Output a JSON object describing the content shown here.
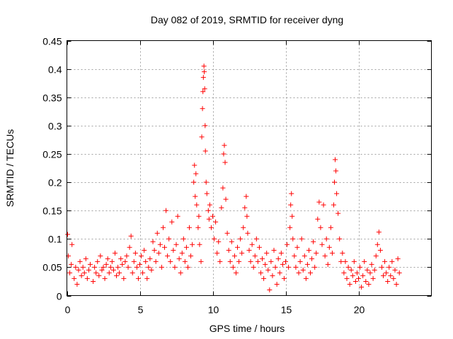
{
  "chart_data": {
    "type": "scatter",
    "title": "Day 082 of 2019, SRMTID for receiver dyng",
    "xlabel": "GPS time / hours",
    "ylabel": "SRMTID / TECUs",
    "xlim": [
      0,
      25
    ],
    "ylim": [
      0,
      0.45
    ],
    "x_ticks": [
      0,
      5,
      10,
      15,
      20
    ],
    "x_tick_labels": [
      "0",
      "5",
      "10",
      "15",
      "20"
    ],
    "y_ticks": [
      0,
      0.05,
      0.1,
      0.15,
      0.2,
      0.25,
      0.3,
      0.35,
      0.4,
      0.45
    ],
    "y_tick_labels": [
      "0",
      "0.05",
      "0.1",
      "0.15",
      "0.2",
      "0.25",
      "0.3",
      "0.35",
      "0.4",
      "0.45"
    ],
    "grid": true,
    "marker": "+",
    "color": "#ff0000",
    "series": [
      {
        "name": "SRMTID",
        "points": [
          [
            0.05,
            0.108
          ],
          [
            0.1,
            0.07
          ],
          [
            0.2,
            0.04
          ],
          [
            0.3,
            0.055
          ],
          [
            0.35,
            0.09
          ],
          [
            0.5,
            0.03
          ],
          [
            0.6,
            0.05
          ],
          [
            0.7,
            0.02
          ],
          [
            0.8,
            0.045
          ],
          [
            0.9,
            0.06
          ],
          [
            1.0,
            0.035
          ],
          [
            1.1,
            0.05
          ],
          [
            1.2,
            0.04
          ],
          [
            1.3,
            0.065
          ],
          [
            1.4,
            0.03
          ],
          [
            1.5,
            0.045
          ],
          [
            1.6,
            0.055
          ],
          [
            1.8,
            0.025
          ],
          [
            1.9,
            0.05
          ],
          [
            2.0,
            0.04
          ],
          [
            2.1,
            0.06
          ],
          [
            2.2,
            0.035
          ],
          [
            2.3,
            0.07
          ],
          [
            2.4,
            0.045
          ],
          [
            2.5,
            0.05
          ],
          [
            2.6,
            0.03
          ],
          [
            2.7,
            0.055
          ],
          [
            2.8,
            0.065
          ],
          [
            2.9,
            0.04
          ],
          [
            3.0,
            0.05
          ],
          [
            3.1,
            0.06
          ],
          [
            3.2,
            0.045
          ],
          [
            3.3,
            0.075
          ],
          [
            3.4,
            0.035
          ],
          [
            3.5,
            0.05
          ],
          [
            3.6,
            0.04
          ],
          [
            3.7,
            0.065
          ],
          [
            3.8,
            0.055
          ],
          [
            3.9,
            0.03
          ],
          [
            4.0,
            0.06
          ],
          [
            4.1,
            0.07
          ],
          [
            4.2,
            0.05
          ],
          [
            4.3,
            0.085
          ],
          [
            4.4,
            0.105
          ],
          [
            4.5,
            0.04
          ],
          [
            4.6,
            0.06
          ],
          [
            4.7,
            0.075
          ],
          [
            4.8,
            0.05
          ],
          [
            4.9,
            0.03
          ],
          [
            5.0,
            0.055
          ],
          [
            5.1,
            0.07
          ],
          [
            5.2,
            0.04
          ],
          [
            5.3,
            0.08
          ],
          [
            5.4,
            0.06
          ],
          [
            5.5,
            0.03
          ],
          [
            5.6,
            0.05
          ],
          [
            5.7,
            0.065
          ],
          [
            5.8,
            0.045
          ],
          [
            5.9,
            0.095
          ],
          [
            6.0,
            0.08
          ],
          [
            6.1,
            0.06
          ],
          [
            6.2,
            0.11
          ],
          [
            6.3,
            0.075
          ],
          [
            6.4,
            0.09
          ],
          [
            6.5,
            0.05
          ],
          [
            6.6,
            0.12
          ],
          [
            6.7,
            0.085
          ],
          [
            6.8,
            0.15
          ],
          [
            6.9,
            0.07
          ],
          [
            7.0,
            0.1
          ],
          [
            7.1,
            0.06
          ],
          [
            7.2,
            0.13
          ],
          [
            7.3,
            0.08
          ],
          [
            7.4,
            0.05
          ],
          [
            7.5,
            0.09
          ],
          [
            7.6,
            0.14
          ],
          [
            7.7,
            0.065
          ],
          [
            7.8,
            0.04
          ],
          [
            7.9,
            0.075
          ],
          [
            8.0,
            0.1
          ],
          [
            8.1,
            0.06
          ],
          [
            8.2,
            0.085
          ],
          [
            8.3,
            0.05
          ],
          [
            8.4,
            0.12
          ],
          [
            8.5,
            0.07
          ],
          [
            8.6,
            0.09
          ],
          [
            8.7,
            0.2
          ],
          [
            8.75,
            0.23
          ],
          [
            8.8,
            0.175
          ],
          [
            8.85,
            0.215
          ],
          [
            8.9,
            0.16
          ],
          [
            9.0,
            0.12
          ],
          [
            9.05,
            0.14
          ],
          [
            9.1,
            0.09
          ],
          [
            9.2,
            0.06
          ],
          [
            9.25,
            0.28
          ],
          [
            9.3,
            0.33
          ],
          [
            9.33,
            0.36
          ],
          [
            9.36,
            0.385
          ],
          [
            9.4,
            0.405
          ],
          [
            9.42,
            0.395
          ],
          [
            9.45,
            0.365
          ],
          [
            9.48,
            0.3
          ],
          [
            9.5,
            0.255
          ],
          [
            9.55,
            0.2
          ],
          [
            9.6,
            0.18
          ],
          [
            9.7,
            0.15
          ],
          [
            9.75,
            0.135
          ],
          [
            9.8,
            0.16
          ],
          [
            9.9,
            0.12
          ],
          [
            10.0,
            0.14
          ],
          [
            10.1,
            0.1
          ],
          [
            10.2,
            0.13
          ],
          [
            10.3,
            0.075
          ],
          [
            10.4,
            0.095
          ],
          [
            10.5,
            0.06
          ],
          [
            10.6,
            0.155
          ],
          [
            10.7,
            0.19
          ],
          [
            10.75,
            0.25
          ],
          [
            10.8,
            0.265
          ],
          [
            10.85,
            0.235
          ],
          [
            10.9,
            0.17
          ],
          [
            11.0,
            0.11
          ],
          [
            11.1,
            0.08
          ],
          [
            11.2,
            0.06
          ],
          [
            11.3,
            0.095
          ],
          [
            11.4,
            0.05
          ],
          [
            11.5,
            0.07
          ],
          [
            11.6,
            0.04
          ],
          [
            11.7,
            0.085
          ],
          [
            11.8,
            0.06
          ],
          [
            11.9,
            0.1
          ],
          [
            12.0,
            0.075
          ],
          [
            12.1,
            0.12
          ],
          [
            12.2,
            0.155
          ],
          [
            12.3,
            0.175
          ],
          [
            12.35,
            0.14
          ],
          [
            12.4,
            0.11
          ],
          [
            12.5,
            0.08
          ],
          [
            12.6,
            0.06
          ],
          [
            12.7,
            0.09
          ],
          [
            12.8,
            0.05
          ],
          [
            12.9,
            0.07
          ],
          [
            13.0,
            0.1
          ],
          [
            13.1,
            0.06
          ],
          [
            13.2,
            0.085
          ],
          [
            13.3,
            0.04
          ],
          [
            13.4,
            0.065
          ],
          [
            13.5,
            0.03
          ],
          [
            13.6,
            0.055
          ],
          [
            13.7,
            0.075
          ],
          [
            13.8,
            0.045
          ],
          [
            13.9,
            0.01
          ],
          [
            14.0,
            0.06
          ],
          [
            14.1,
            0.035
          ],
          [
            14.2,
            0.08
          ],
          [
            14.3,
            0.05
          ],
          [
            14.4,
            0.02
          ],
          [
            14.5,
            0.065
          ],
          [
            14.6,
            0.04
          ],
          [
            14.7,
            0.075
          ],
          [
            14.8,
            0.055
          ],
          [
            14.9,
            0.03
          ],
          [
            15.0,
            0.06
          ],
          [
            15.1,
            0.09
          ],
          [
            15.2,
            0.05
          ],
          [
            15.3,
            0.12
          ],
          [
            15.35,
            0.16
          ],
          [
            15.4,
            0.18
          ],
          [
            15.45,
            0.14
          ],
          [
            15.5,
            0.1
          ],
          [
            15.6,
            0.07
          ],
          [
            15.7,
            0.05
          ],
          [
            15.8,
            0.085
          ],
          [
            15.9,
            0.04
          ],
          [
            16.0,
            0.06
          ],
          [
            16.1,
            0.1
          ],
          [
            16.2,
            0.045
          ],
          [
            16.3,
            0.07
          ],
          [
            16.4,
            0.03
          ],
          [
            16.5,
            0.055
          ],
          [
            16.6,
            0.08
          ],
          [
            16.7,
            0.04
          ],
          [
            16.8,
            0.065
          ],
          [
            16.9,
            0.095
          ],
          [
            17.0,
            0.05
          ],
          [
            17.1,
            0.075
          ],
          [
            17.2,
            0.135
          ],
          [
            17.3,
            0.165
          ],
          [
            17.4,
            0.12
          ],
          [
            17.5,
            0.09
          ],
          [
            17.6,
            0.16
          ],
          [
            17.7,
            0.07
          ],
          [
            17.8,
            0.1
          ],
          [
            17.9,
            0.055
          ],
          [
            18.0,
            0.085
          ],
          [
            18.1,
            0.12
          ],
          [
            18.2,
            0.075
          ],
          [
            18.3,
            0.16
          ],
          [
            18.35,
            0.2
          ],
          [
            18.4,
            0.24
          ],
          [
            18.45,
            0.22
          ],
          [
            18.5,
            0.18
          ],
          [
            18.6,
            0.145
          ],
          [
            18.7,
            0.1
          ],
          [
            18.8,
            0.06
          ],
          [
            18.9,
            0.075
          ],
          [
            19.0,
            0.04
          ],
          [
            19.1,
            0.06
          ],
          [
            19.2,
            0.03
          ],
          [
            19.3,
            0.05
          ],
          [
            19.4,
            0.02
          ],
          [
            19.5,
            0.045
          ],
          [
            19.6,
            0.035
          ],
          [
            19.7,
            0.06
          ],
          [
            19.8,
            0.025
          ],
          [
            19.9,
            0.04
          ],
          [
            20.0,
            0.03
          ],
          [
            20.1,
            0.05
          ],
          [
            20.2,
            0.015
          ],
          [
            20.3,
            0.035
          ],
          [
            20.4,
            0.06
          ],
          [
            20.5,
            0.025
          ],
          [
            20.6,
            0.045
          ],
          [
            20.7,
            0.02
          ],
          [
            20.8,
            0.04
          ],
          [
            20.9,
            0.055
          ],
          [
            21.0,
            0.03
          ],
          [
            21.1,
            0.045
          ],
          [
            21.2,
            0.07
          ],
          [
            21.3,
            0.09
          ],
          [
            21.4,
            0.112
          ],
          [
            21.5,
            0.08
          ],
          [
            21.6,
            0.05
          ],
          [
            21.7,
            0.035
          ],
          [
            21.8,
            0.06
          ],
          [
            21.9,
            0.04
          ],
          [
            22.0,
            0.025
          ],
          [
            22.1,
            0.05
          ],
          [
            22.2,
            0.035
          ],
          [
            22.3,
            0.06
          ],
          [
            22.4,
            0.03
          ],
          [
            22.5,
            0.045
          ],
          [
            22.6,
            0.02
          ],
          [
            22.7,
            0.065
          ],
          [
            22.8,
            0.04
          ]
        ]
      }
    ]
  }
}
